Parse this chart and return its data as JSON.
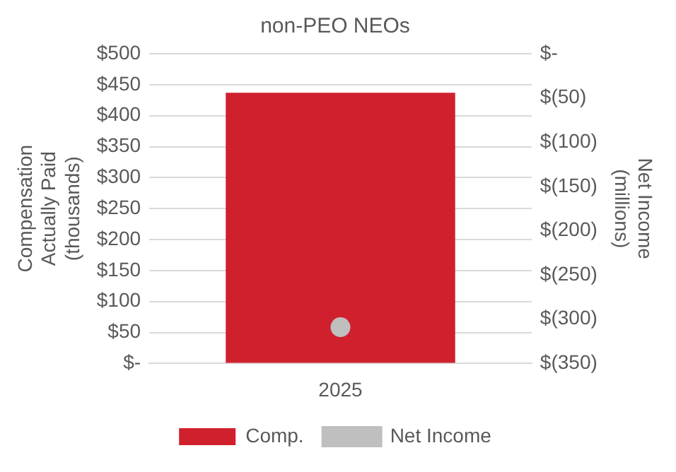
{
  "chart_data": {
    "type": "bar",
    "title": "non-PEO NEOs",
    "ylabel": "Compensation Actually Paid (thousands)",
    "y2label": "Net Income (millions)",
    "categories": [
      "2025"
    ],
    "series": [
      {
        "name": "Comp.",
        "color": "#d0202e",
        "values": [
          437
        ]
      },
      {
        "name": "Net Income",
        "type": "line",
        "axis": "y2",
        "color": "#bfbfbf",
        "values": [
          -309
        ]
      }
    ],
    "ylim": [
      0,
      500
    ],
    "yticks": [
      {
        "value": 0,
        "label": "$-"
      },
      {
        "value": 50,
        "label": "$50"
      },
      {
        "value": 100,
        "label": "$100"
      },
      {
        "value": 150,
        "label": "$150"
      },
      {
        "value": 200,
        "label": "$200"
      },
      {
        "value": 250,
        "label": "$250"
      },
      {
        "value": 300,
        "label": "$300"
      },
      {
        "value": 350,
        "label": "$350"
      },
      {
        "value": 400,
        "label": "$400"
      },
      {
        "value": 450,
        "label": "$450"
      },
      {
        "value": 500,
        "label": "$500"
      }
    ],
    "y2lim": [
      -350,
      0
    ],
    "y2ticks": [
      {
        "value": -350,
        "label": "$(350)"
      },
      {
        "value": -300,
        "label": "$(300)"
      },
      {
        "value": -250,
        "label": "$(250)"
      },
      {
        "value": -200,
        "label": "$(200)"
      },
      {
        "value": -150,
        "label": "$(150)"
      },
      {
        "value": -100,
        "label": "$(100)"
      },
      {
        "value": -50,
        "label": "$(50)"
      },
      {
        "value": 0,
        "label": "$-"
      }
    ],
    "grid": "y",
    "legend": "bottom",
    "marker": "circle"
  }
}
